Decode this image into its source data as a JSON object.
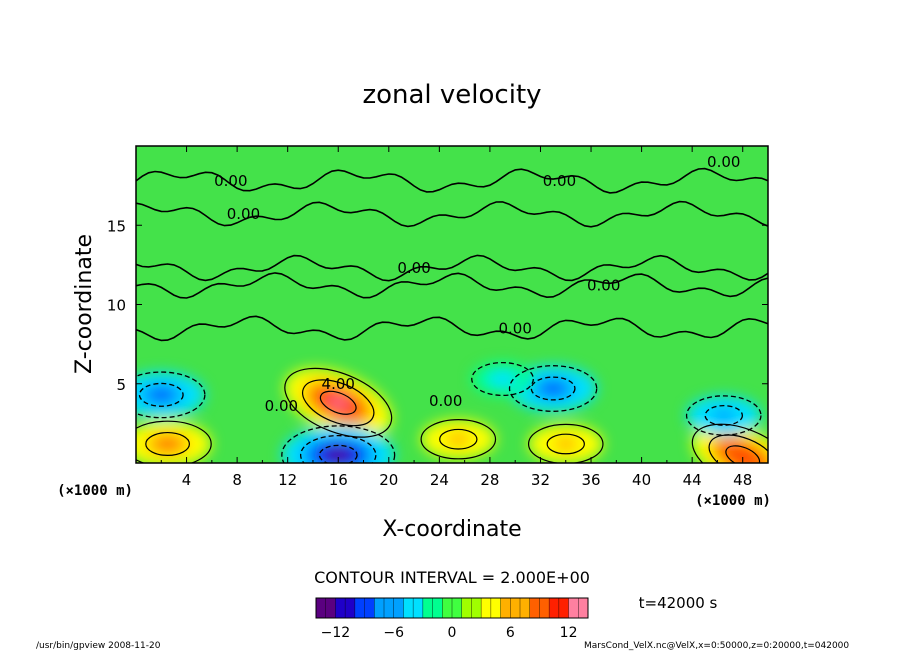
{
  "chart_data": {
    "type": "heatmap",
    "title": "zonal velocity",
    "xlabel": "X-coordinate",
    "ylabel": "Z-coordinate",
    "x_unit": "(×1000 m)",
    "y_unit": "(×1000 m)",
    "xlim": [
      0,
      50
    ],
    "ylim": [
      0,
      20
    ],
    "x_ticks": [
      4,
      8,
      12,
      16,
      20,
      24,
      28,
      32,
      36,
      40,
      44,
      48
    ],
    "y_ticks": [
      5,
      10,
      15
    ],
    "contour_interval_text": "CONTOUR INTERVAL = 2.000E+00",
    "time_label": "t=42000 s",
    "colorbar": {
      "range": [
        -14,
        14
      ],
      "ticks": [
        -12,
        -6,
        0,
        6,
        12
      ],
      "colors": [
        "#5a0080",
        "#1f00c8",
        "#0040ff",
        "#00a0ff",
        "#00e0ff",
        "#00ff90",
        "#40ff40",
        "#a0ff00",
        "#ffff00",
        "#ffb000",
        "#ff6000",
        "#ff2000",
        "#ff80a0"
      ]
    },
    "contour_labels": [
      {
        "text": "0.00",
        "x": 7.5,
        "z": 17.8
      },
      {
        "text": "0.00",
        "x": 33.5,
        "z": 17.8
      },
      {
        "text": "0.00",
        "x": 46.5,
        "z": 19.0
      },
      {
        "text": "0.00",
        "x": 8.5,
        "z": 15.7
      },
      {
        "text": "0.00",
        "x": 22.0,
        "z": 12.3
      },
      {
        "text": "0.00",
        "x": 37.0,
        "z": 11.2
      },
      {
        "text": "0.00",
        "x": 30.0,
        "z": 8.5
      },
      {
        "text": "0.00",
        "x": 11.5,
        "z": 3.6
      },
      {
        "text": "0.00",
        "x": 24.5,
        "z": 3.9
      },
      {
        "text": "4.00",
        "x": 16.0,
        "z": 5.0
      }
    ],
    "extrema": [
      {
        "x": 16,
        "z": 3.8,
        "value": 12
      },
      {
        "x": 2.5,
        "z": 1.2,
        "value": 8
      },
      {
        "x": 48,
        "z": 0.4,
        "value": 11
      },
      {
        "x": 16,
        "z": 0.5,
        "value": -12
      },
      {
        "x": 2.0,
        "z": 4.3,
        "value": -8
      },
      {
        "x": 33.0,
        "z": 4.7,
        "value": -8
      },
      {
        "x": 46.5,
        "z": 3.0,
        "value": -6
      },
      {
        "x": 29.0,
        "z": 5.3,
        "value": -4
      },
      {
        "x": 25.5,
        "z": 1.5,
        "value": 6
      },
      {
        "x": 34.0,
        "z": 1.2,
        "value": 6
      }
    ]
  },
  "footer": {
    "left_text": "/usr/bin/gpview   2008-11-20",
    "right_text": "MarsCond_VelX.nc@VelX,x=0:50000,z=0:20000,t=042000"
  }
}
